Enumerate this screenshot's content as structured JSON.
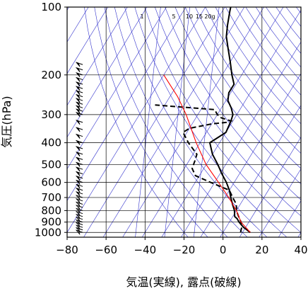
{
  "chart_data": {
    "type": "line",
    "title": "",
    "xlabel": "気温(実線), 露点(破線)",
    "ylabel": "気圧(hPa)",
    "xlim": [
      -80,
      40
    ],
    "ylim": [
      1050,
      100
    ],
    "y_scale": "log",
    "x_ticks": [
      -80,
      -60,
      -40,
      -20,
      0,
      20,
      40
    ],
    "x_tick_labels": [
      "−80",
      "−60",
      "−40",
      "−20",
      "0",
      "20",
      "40"
    ],
    "y_ticks": [
      100,
      200,
      300,
      400,
      500,
      600,
      700,
      800,
      900,
      1000
    ],
    "y_tick_labels": [
      "100",
      "200",
      "300",
      "400",
      "500",
      "600",
      "700",
      "800",
      "900",
      "1000"
    ],
    "mixing_ratio_labels": [
      "1",
      "5",
      "10",
      "15",
      "20g"
    ],
    "colors": {
      "temperature": "#000000",
      "dewpoint": "#000000",
      "parcel": "#ff0000",
      "background_lines": "#3333cc",
      "grid": "#000000",
      "wind_barbs": "#000000"
    },
    "series": [
      {
        "key": "temperature",
        "style": "solid",
        "points": [
          [
            1000,
            14
          ],
          [
            970,
            11
          ],
          [
            950,
            9
          ],
          [
            925,
            7
          ],
          [
            900,
            5
          ],
          [
            870,
            3
          ],
          [
            850,
            1
          ],
          [
            800,
            -1
          ],
          [
            750,
            -4
          ],
          [
            700,
            -7
          ],
          [
            650,
            -10
          ],
          [
            600,
            -14
          ],
          [
            550,
            -19
          ],
          [
            500,
            -24
          ],
          [
            450,
            -30
          ],
          [
            400,
            -35
          ],
          [
            360,
            -30
          ],
          [
            320,
            -31
          ],
          [
            300,
            -32
          ],
          [
            280,
            -35
          ],
          [
            260,
            -39
          ],
          [
            240,
            -41
          ],
          [
            220,
            -41
          ],
          [
            200,
            -45
          ],
          [
            175,
            -50
          ],
          [
            150,
            -56
          ],
          [
            135,
            -60
          ],
          [
            120,
            -63
          ],
          [
            105,
            -66
          ],
          [
            100,
            -67
          ]
        ]
      },
      {
        "key": "dewpoint",
        "style": "dashed",
        "points": [
          [
            1000,
            9
          ],
          [
            950,
            8
          ],
          [
            900,
            6
          ],
          [
            850,
            3
          ],
          [
            800,
            0
          ],
          [
            750,
            -2
          ],
          [
            700,
            -6
          ],
          [
            650,
            -10
          ],
          [
            600,
            -22
          ],
          [
            560,
            -32
          ],
          [
            520,
            -36
          ],
          [
            480,
            -37
          ],
          [
            450,
            -38
          ],
          [
            400,
            -46
          ],
          [
            360,
            -52
          ],
          [
            345,
            -50
          ],
          [
            330,
            -40
          ],
          [
            325,
            -33
          ],
          [
            320,
            -31
          ],
          [
            310,
            -37
          ],
          [
            300,
            -40
          ],
          [
            285,
            -43
          ],
          [
            272,
            -75
          ]
        ]
      },
      {
        "key": "parcel",
        "style": "solid",
        "points": [
          [
            1000,
            14
          ],
          [
            900,
            6
          ],
          [
            800,
            0
          ],
          [
            700,
            -8
          ],
          [
            600,
            -18
          ],
          [
            500,
            -30
          ],
          [
            400,
            -42
          ],
          [
            300,
            -56
          ],
          [
            250,
            -66
          ],
          [
            200,
            -80
          ]
        ]
      }
    ],
    "wind_barbs": [
      1000,
      975,
      950,
      925,
      900,
      875,
      850,
      825,
      800,
      775,
      750,
      725,
      700,
      675,
      650,
      625,
      600,
      575,
      550,
      525,
      500,
      475,
      450,
      425,
      400,
      375,
      350,
      325,
      300,
      290,
      280,
      270,
      260,
      250,
      240,
      230,
      220,
      210,
      200,
      190,
      180
    ]
  }
}
